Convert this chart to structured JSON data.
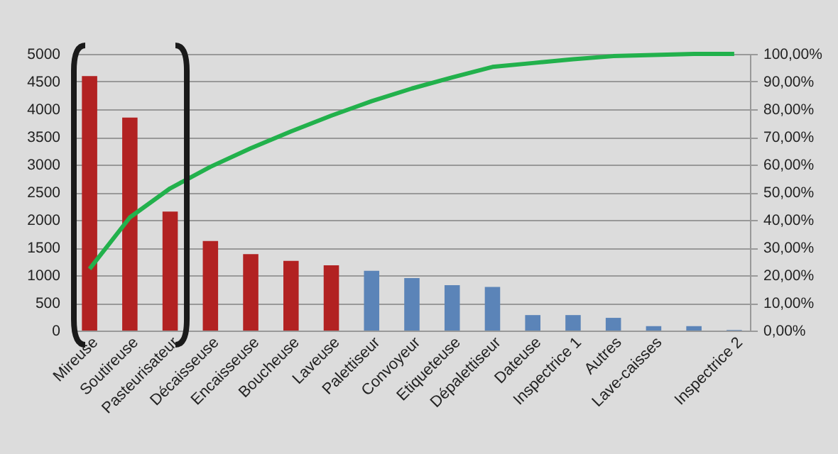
{
  "chart_data": {
    "type": "bar",
    "categories": [
      "Mireuse",
      "Soutireuse",
      "Pasteurisateur",
      "Décaisseuse",
      "Encaisseuse",
      "Boucheuse",
      "Laveuse",
      "Palettiseur",
      "Convoyeur",
      "Etiqueteuse",
      "Dépalettiseur",
      "Dateuse",
      "Inspectrice 1",
      "Autres",
      "Lave-caisses",
      null,
      "Inspectrice 2"
    ],
    "series": [
      {
        "colors": [
          "#b22222",
          "#b22222",
          "#b22222",
          "#b22222",
          "#b22222",
          "#b22222",
          "#b22222",
          "#5b84b8",
          "#5b84b8",
          "#5b84b8",
          "#5b84b8",
          "#5b84b8",
          "#5b84b8",
          "#5b84b8",
          "#5b84b8",
          "#5b84b8",
          "#5b84b8"
        ],
        "values": [
          4600,
          3850,
          2150,
          1620,
          1380,
          1260,
          1180,
          1080,
          950,
          820,
          790,
          280,
          280,
          230,
          80,
          80,
          10
        ]
      },
      {
        "type": "line",
        "axis": "y2",
        "color": "#22b14c",
        "values": [
          22.3,
          40.9,
          51.4,
          59.2,
          65.9,
          72.0,
          77.7,
          82.9,
          87.5,
          91.5,
          95.3,
          96.7,
          98.1,
          99.2,
          99.6,
          100,
          100
        ]
      }
    ],
    "ylim": [
      0,
      5000
    ],
    "yticks": [
      0,
      500,
      1000,
      1500,
      2000,
      2500,
      3000,
      3500,
      4000,
      4500,
      5000
    ],
    "y2lim": [
      0,
      100
    ],
    "y2ticks": [
      {
        "value": 0,
        "label": "0,00%"
      },
      {
        "value": 10,
        "label": "10,00%"
      },
      {
        "value": 20,
        "label": "20,00%"
      },
      {
        "value": 30,
        "label": "30,00%"
      },
      {
        "value": 40,
        "label": "40,00%"
      },
      {
        "value": 50,
        "label": "50,00%"
      },
      {
        "value": 60,
        "label": "60,00%"
      },
      {
        "value": 70,
        "label": "70,00%"
      },
      {
        "value": 80,
        "label": "80,00%"
      },
      {
        "value": 90,
        "label": "90,00%"
      },
      {
        "value": 100,
        "label": "100,00%"
      }
    ],
    "grid": "y",
    "marker": "none",
    "line_style": "solid"
  }
}
